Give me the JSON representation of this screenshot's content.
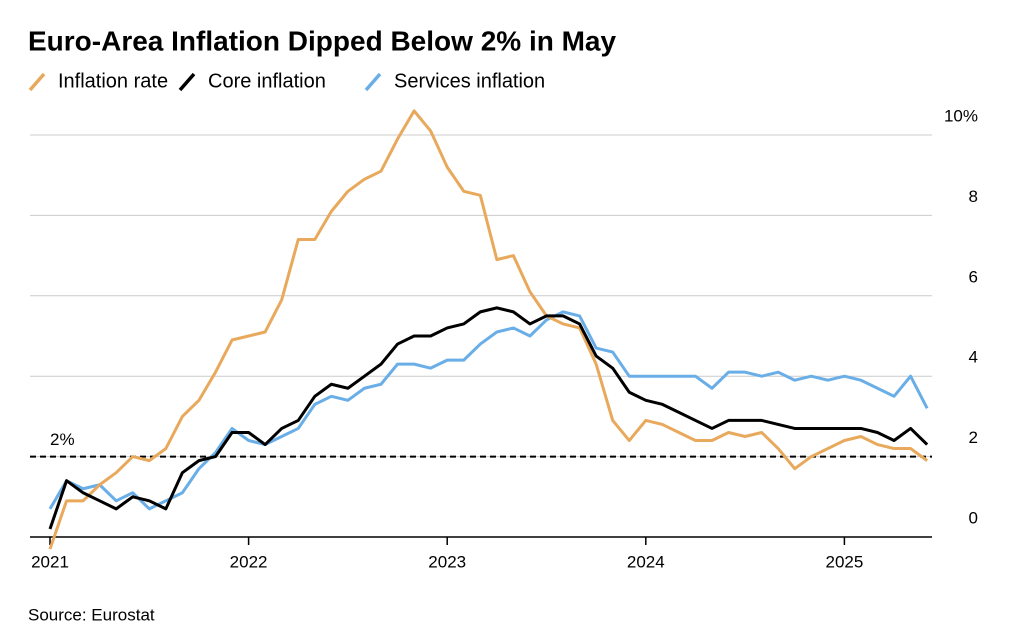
{
  "chart_data": {
    "type": "line",
    "title": "Euro-Area Inflation Dipped Below 2% in May",
    "source": "Source: Eurostat",
    "categories": [
      "2021",
      null,
      null,
      null,
      null,
      null,
      null,
      null,
      null,
      null,
      null,
      null,
      "2022",
      null,
      null,
      null,
      null,
      null,
      null,
      null,
      null,
      null,
      null,
      null,
      "2023",
      null,
      null,
      null,
      null,
      null,
      null,
      null,
      null,
      null,
      null,
      null,
      "2024",
      null,
      null,
      null,
      null,
      null,
      null,
      null,
      null,
      null,
      null,
      null,
      "2025",
      null,
      null,
      null,
      null,
      null
    ],
    "series": [
      {
        "name": "Inflation rate",
        "color": "#e8a95c",
        "values": [
          -0.3,
          0.9,
          0.9,
          1.3,
          1.6,
          2.0,
          1.9,
          2.2,
          3.0,
          3.4,
          4.1,
          4.9,
          5.0,
          5.1,
          5.9,
          7.4,
          7.4,
          8.1,
          8.6,
          8.9,
          9.1,
          9.9,
          10.6,
          10.1,
          9.2,
          8.6,
          8.5,
          6.9,
          7.0,
          6.1,
          5.5,
          5.3,
          5.2,
          4.3,
          2.9,
          2.4,
          2.9,
          2.8,
          2.6,
          2.4,
          2.4,
          2.6,
          2.5,
          2.6,
          2.2,
          1.7,
          2.0,
          2.2,
          2.4,
          2.5,
          2.3,
          2.2,
          2.2,
          1.9
        ]
      },
      {
        "name": "Core inflation",
        "color": "#000000",
        "values": [
          0.2,
          1.4,
          1.1,
          0.9,
          0.7,
          1.0,
          0.9,
          0.7,
          1.6,
          1.9,
          2.0,
          2.6,
          2.6,
          2.3,
          2.7,
          2.9,
          3.5,
          3.8,
          3.7,
          4.0,
          4.3,
          4.8,
          5.0,
          5.0,
          5.2,
          5.3,
          5.6,
          5.7,
          5.6,
          5.3,
          5.5,
          5.5,
          5.3,
          4.5,
          4.2,
          3.6,
          3.4,
          3.3,
          3.1,
          2.9,
          2.7,
          2.9,
          2.9,
          2.9,
          2.8,
          2.7,
          2.7,
          2.7,
          2.7,
          2.7,
          2.6,
          2.4,
          2.7,
          2.3
        ]
      },
      {
        "name": "Services inflation",
        "color": "#6aaee8",
        "values": [
          0.7,
          1.4,
          1.2,
          1.3,
          0.9,
          1.1,
          0.7,
          0.9,
          1.1,
          1.7,
          2.1,
          2.7,
          2.4,
          2.3,
          2.5,
          2.7,
          3.3,
          3.5,
          3.4,
          3.7,
          3.8,
          4.3,
          4.3,
          4.2,
          4.4,
          4.4,
          4.8,
          5.1,
          5.2,
          5.0,
          5.4,
          5.6,
          5.5,
          4.7,
          4.6,
          4.0,
          4.0,
          4.0,
          4.0,
          4.0,
          3.7,
          4.1,
          4.1,
          4.0,
          4.1,
          3.9,
          4.0,
          3.9,
          4.0,
          3.9,
          3.7,
          3.5,
          4.0,
          3.2
        ]
      }
    ],
    "ylim": [
      0,
      10
    ],
    "yticks": [
      0,
      2,
      4,
      6,
      8,
      {
        "value": 10,
        "label": "10%"
      }
    ],
    "grid": true,
    "threshold": {
      "value": 2,
      "label": "2%"
    }
  }
}
